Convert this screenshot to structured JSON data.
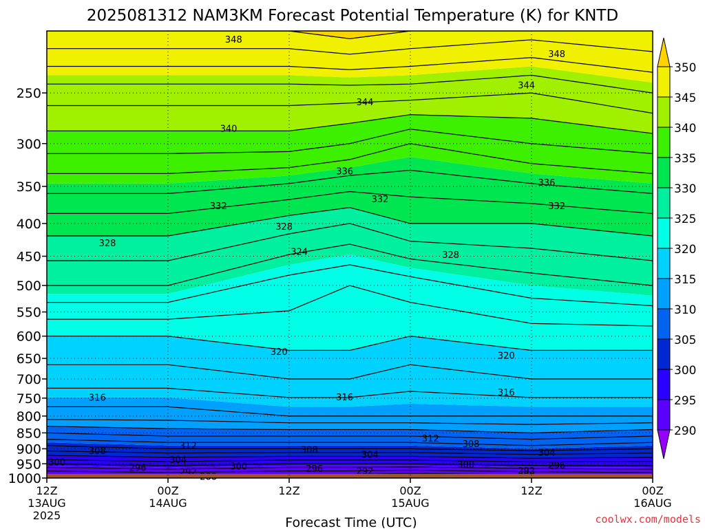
{
  "chart_data": {
    "type": "heatmap",
    "title": "2025081312 NAM3KM Forecast Potential Temperature (K) for KNTD",
    "xlabel": "Forecast Time (UTC)",
    "ylabel": "",
    "x_ticks": [
      {
        "hours": 0,
        "lines": [
          "12Z",
          "13AUG",
          "2025"
        ]
      },
      {
        "hours": 12,
        "lines": [
          "00Z",
          "14AUG"
        ]
      },
      {
        "hours": 24,
        "lines": [
          "12Z"
        ]
      },
      {
        "hours": 36,
        "lines": [
          "00Z",
          "15AUG"
        ]
      },
      {
        "hours": 48,
        "lines": [
          "12Z"
        ]
      },
      {
        "hours": 60,
        "lines": [
          "00Z",
          "16AUG"
        ]
      }
    ],
    "xlim_hours": [
      0,
      60
    ],
    "y_ticks": [
      250,
      300,
      350,
      400,
      450,
      500,
      550,
      600,
      650,
      700,
      750,
      800,
      850,
      900,
      950,
      1000
    ],
    "ylim_hpa": [
      200,
      1000
    ],
    "y_log_scale": true,
    "grid": "dotted",
    "colorbar": {
      "levels": [
        290,
        295,
        300,
        305,
        310,
        315,
        320,
        325,
        330,
        335,
        340,
        345,
        350
      ],
      "colors": [
        "#9600ff",
        "#5a00ff",
        "#2a00ff",
        "#0028d2",
        "#0064f0",
        "#00a0ff",
        "#00d2ff",
        "#00ffe6",
        "#00f0a0",
        "#00e650",
        "#3cf000",
        "#a0f000",
        "#f0f000",
        "#ffd200"
      ],
      "labels": [
        "350",
        "345",
        "340",
        "335",
        "330",
        "325",
        "320",
        "315",
        "310",
        "305",
        "300",
        "295",
        "290"
      ]
    },
    "ground_color": "#a0522d",
    "profile_hours": [
      0,
      6,
      12,
      18,
      24,
      30,
      36,
      42,
      48,
      54,
      60
    ],
    "profiles": [
      {
        "time": "0",
        "theta_at_pressure": [
          [
            1000,
            288
          ],
          [
            950,
            296
          ],
          [
            900,
            303
          ],
          [
            850,
            308
          ],
          [
            800,
            313
          ],
          [
            700,
            317
          ],
          [
            600,
            320
          ],
          [
            500,
            326
          ],
          [
            400,
            331
          ],
          [
            300,
            339
          ],
          [
            250,
            343
          ],
          [
            200,
            350
          ]
        ]
      },
      {
        "time": "12",
        "theta_at_pressure": [
          [
            1000,
            289
          ],
          [
            950,
            297
          ],
          [
            900,
            304
          ],
          [
            850,
            309
          ],
          [
            800,
            313
          ],
          [
            700,
            317
          ],
          [
            600,
            320
          ],
          [
            500,
            326
          ],
          [
            400,
            331
          ],
          [
            300,
            339
          ],
          [
            250,
            343
          ],
          [
            200,
            350
          ]
        ]
      },
      {
        "time": "24",
        "theta_at_pressure": [
          [
            1000,
            288
          ],
          [
            950,
            296
          ],
          [
            900,
            304
          ],
          [
            850,
            309
          ],
          [
            800,
            314
          ],
          [
            700,
            318
          ],
          [
            600,
            321
          ],
          [
            500,
            323
          ],
          [
            400,
            329
          ],
          [
            300,
            339
          ],
          [
            250,
            343
          ],
          [
            200,
            350
          ]
        ]
      },
      {
        "time": "30",
        "theta_at_pressure": [
          [
            1000,
            288
          ],
          [
            950,
            296
          ],
          [
            900,
            304
          ],
          [
            850,
            309
          ],
          [
            800,
            314
          ],
          [
            700,
            318
          ],
          [
            600,
            321
          ],
          [
            500,
            322
          ],
          [
            400,
            328
          ],
          [
            300,
            338
          ],
          [
            250,
            343
          ],
          [
            200,
            351
          ]
        ]
      },
      {
        "time": "36",
        "theta_at_pressure": [
          [
            1000,
            287
          ],
          [
            950,
            296
          ],
          [
            900,
            304
          ],
          [
            850,
            309
          ],
          [
            800,
            314
          ],
          [
            700,
            317
          ],
          [
            600,
            320
          ],
          [
            500,
            323
          ],
          [
            400,
            330
          ],
          [
            300,
            336
          ],
          [
            250,
            343
          ],
          [
            200,
            350
          ]
        ]
      },
      {
        "time": "48",
        "theta_at_pressure": [
          [
            1000,
            288
          ],
          [
            950,
            297
          ],
          [
            900,
            305
          ],
          [
            850,
            310
          ],
          [
            800,
            314
          ],
          [
            700,
            318
          ],
          [
            600,
            321
          ],
          [
            500,
            325
          ],
          [
            400,
            330
          ],
          [
            300,
            338
          ],
          [
            250,
            342
          ],
          [
            200,
            349
          ]
        ]
      },
      {
        "time": "60",
        "theta_at_pressure": [
          [
            1000,
            289
          ],
          [
            950,
            297
          ],
          [
            900,
            304
          ],
          [
            850,
            309
          ],
          [
            800,
            314
          ],
          [
            700,
            318
          ],
          [
            600,
            321
          ],
          [
            500,
            326
          ],
          [
            400,
            331
          ],
          [
            300,
            339
          ],
          [
            250,
            344
          ],
          [
            200,
            350
          ]
        ]
      }
    ],
    "contour_labels": [
      {
        "value": "348",
        "hours": 18.5,
        "hpa": 206
      },
      {
        "value": "348",
        "hours": 50.5,
        "hpa": 217
      },
      {
        "value": "344",
        "hours": 31.5,
        "hpa": 258
      },
      {
        "value": "344",
        "hours": 47.5,
        "hpa": 243
      },
      {
        "value": "340",
        "hours": 18.0,
        "hpa": 284
      },
      {
        "value": "336",
        "hours": 29.5,
        "hpa": 331
      },
      {
        "value": "336",
        "hours": 49.5,
        "hpa": 345
      },
      {
        "value": "332",
        "hours": 17.0,
        "hpa": 375
      },
      {
        "value": "332",
        "hours": 33.0,
        "hpa": 366
      },
      {
        "value": "332",
        "hours": 50.5,
        "hpa": 375
      },
      {
        "value": "328",
        "hours": 6.0,
        "hpa": 429
      },
      {
        "value": "328",
        "hours": 23.5,
        "hpa": 404
      },
      {
        "value": "328",
        "hours": 40.0,
        "hpa": 447
      },
      {
        "value": "324",
        "hours": 25.0,
        "hpa": 442
      },
      {
        "value": "320",
        "hours": 23.0,
        "hpa": 634
      },
      {
        "value": "320",
        "hours": 45.5,
        "hpa": 643
      },
      {
        "value": "316",
        "hours": 5.0,
        "hpa": 748
      },
      {
        "value": "316",
        "hours": 29.5,
        "hpa": 747
      },
      {
        "value": "316",
        "hours": 45.5,
        "hpa": 734
      },
      {
        "value": "312",
        "hours": 14.0,
        "hpa": 889
      },
      {
        "value": "312",
        "hours": 38.0,
        "hpa": 866
      },
      {
        "value": "308",
        "hours": 5.0,
        "hpa": 906
      },
      {
        "value": "308",
        "hours": 26.0,
        "hpa": 902
      },
      {
        "value": "308",
        "hours": 42.0,
        "hpa": 884
      },
      {
        "value": "304",
        "hours": 13.0,
        "hpa": 935
      },
      {
        "value": "304",
        "hours": 32.0,
        "hpa": 918
      },
      {
        "value": "304",
        "hours": 49.5,
        "hpa": 911
      },
      {
        "value": "300",
        "hours": 1.0,
        "hpa": 944
      },
      {
        "value": "300",
        "hours": 19.0,
        "hpa": 958
      },
      {
        "value": "300",
        "hours": 41.5,
        "hpa": 952
      },
      {
        "value": "296",
        "hours": 9.0,
        "hpa": 962
      },
      {
        "value": "296",
        "hours": 26.5,
        "hpa": 966
      },
      {
        "value": "296",
        "hours": 50.5,
        "hpa": 954
      },
      {
        "value": "292",
        "hours": 14.0,
        "hpa": 977
      },
      {
        "value": "292",
        "hours": 31.5,
        "hpa": 974
      },
      {
        "value": "292",
        "hours": 47.5,
        "hpa": 973
      },
      {
        "value": "288",
        "hours": 16.0,
        "hpa": 994
      },
      {
        "value": "288",
        "hours": 47.5,
        "hpa": 988
      }
    ]
  },
  "credit": "coolwx.com/models"
}
